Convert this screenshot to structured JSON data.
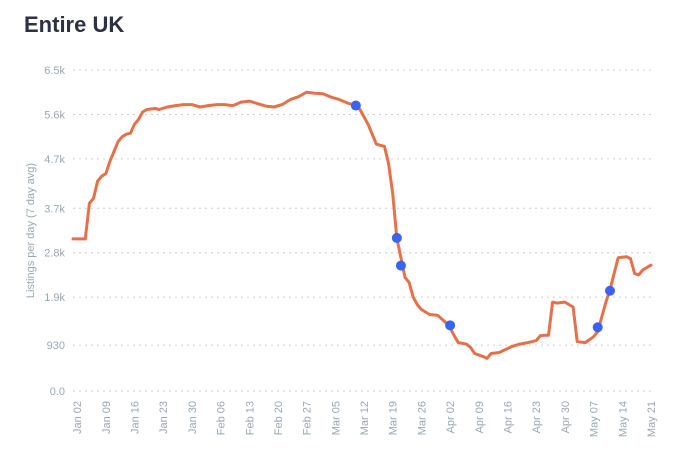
{
  "title": "Entire UK",
  "colors": {
    "line": "#e4714a",
    "marker": "#3a63f2",
    "grid": "#c9ced3",
    "text": "#9aa7b0",
    "title": "#2d3142"
  },
  "chart_data": {
    "type": "line",
    "title": "Entire UK",
    "xlabel": "",
    "ylabel": "Listings per day (7 day avg)",
    "ylim": [
      0,
      6500
    ],
    "yticks": [
      0,
      930,
      1900,
      2800,
      3700,
      4700,
      5600,
      6500
    ],
    "ytick_labels": [
      "0.0",
      "930",
      "1.9k",
      "2.8k",
      "3.7k",
      "4.7k",
      "5.6k",
      "6.5k"
    ],
    "xlim": [
      "2020-01-01",
      "2020-05-21"
    ],
    "xticks": [
      "2020-01-02",
      "2020-01-09",
      "2020-01-16",
      "2020-01-23",
      "2020-01-30",
      "2020-02-06",
      "2020-02-13",
      "2020-02-20",
      "2020-02-27",
      "2020-03-05",
      "2020-03-12",
      "2020-03-19",
      "2020-03-26",
      "2020-04-02",
      "2020-04-09",
      "2020-04-16",
      "2020-04-23",
      "2020-04-30",
      "2020-05-07",
      "2020-05-14",
      "2020-05-21"
    ],
    "xtick_labels": [
      "Jan 02",
      "Jan 09",
      "Jan 16",
      "Jan 23",
      "Jan 30",
      "Feb 06",
      "Feb 13",
      "Feb 20",
      "Feb 27",
      "Mar 05",
      "Mar 12",
      "Mar 19",
      "Mar 26",
      "Apr 02",
      "Apr 09",
      "Apr 16",
      "Apr 23",
      "Apr 30",
      "May 07",
      "May 14",
      "May 21"
    ],
    "grid": true,
    "series": [
      {
        "x": [
          "2020-01-01",
          "2020-01-02",
          "2020-01-04",
          "2020-01-05",
          "2020-01-06",
          "2020-01-07",
          "2020-01-08",
          "2020-01-09",
          "2020-01-10",
          "2020-01-11",
          "2020-01-12",
          "2020-01-13",
          "2020-01-14",
          "2020-01-15",
          "2020-01-16",
          "2020-01-17",
          "2020-01-18",
          "2020-01-19",
          "2020-01-21",
          "2020-01-22",
          "2020-01-24",
          "2020-01-26",
          "2020-01-28",
          "2020-01-30",
          "2020-02-01",
          "2020-02-03",
          "2020-02-05",
          "2020-02-07",
          "2020-02-09",
          "2020-02-11",
          "2020-02-13",
          "2020-02-15",
          "2020-02-17",
          "2020-02-19",
          "2020-02-21",
          "2020-02-23",
          "2020-02-25",
          "2020-02-27",
          "2020-02-29",
          "2020-03-02",
          "2020-03-04",
          "2020-03-06",
          "2020-03-08",
          "2020-03-10",
          "2020-03-11",
          "2020-03-12",
          "2020-03-13",
          "2020-03-15",
          "2020-03-17",
          "2020-03-18",
          "2020-03-19",
          "2020-03-20",
          "2020-03-21",
          "2020-03-22",
          "2020-03-23",
          "2020-03-24",
          "2020-03-25",
          "2020-03-26",
          "2020-03-28",
          "2020-03-30",
          "2020-04-01",
          "2020-04-02",
          "2020-04-03",
          "2020-04-04",
          "2020-04-06",
          "2020-04-07",
          "2020-04-08",
          "2020-04-10",
          "2020-04-11",
          "2020-04-12",
          "2020-04-14",
          "2020-04-15",
          "2020-04-17",
          "2020-04-19",
          "2020-04-21",
          "2020-04-23",
          "2020-04-24",
          "2020-04-25",
          "2020-04-26",
          "2020-04-27",
          "2020-04-28",
          "2020-04-30",
          "2020-05-01",
          "2020-05-02",
          "2020-05-03",
          "2020-05-05",
          "2020-05-07",
          "2020-05-08",
          "2020-05-09",
          "2020-05-10",
          "2020-05-11",
          "2020-05-12",
          "2020-05-13",
          "2020-05-15",
          "2020-05-16",
          "2020-05-17",
          "2020-05-18",
          "2020-05-19",
          "2020-05-21"
        ],
        "values": [
          3080,
          3080,
          3080,
          3800,
          3900,
          4250,
          4350,
          4400,
          4650,
          4850,
          5050,
          5150,
          5200,
          5220,
          5400,
          5500,
          5650,
          5700,
          5720,
          5700,
          5750,
          5780,
          5800,
          5800,
          5750,
          5780,
          5800,
          5800,
          5780,
          5850,
          5870,
          5820,
          5770,
          5750,
          5800,
          5900,
          5960,
          6050,
          6030,
          6020,
          5950,
          5900,
          5830,
          5780,
          5700,
          5550,
          5400,
          5000,
          4950,
          4600,
          4000,
          3100,
          2700,
          2300,
          2200,
          1900,
          1750,
          1650,
          1550,
          1530,
          1380,
          1280,
          1120,
          980,
          950,
          880,
          760,
          700,
          660,
          760,
          780,
          820,
          900,
          950,
          980,
          1020,
          1120,
          1130,
          1130,
          1800,
          1780,
          1800,
          1750,
          1700,
          1000,
          980,
          1100,
          1200,
          1500,
          1800,
          2050,
          2380,
          2700,
          2720,
          2680,
          2380,
          2350,
          2450,
          2550
        ]
      }
    ],
    "markers": [
      {
        "x": "2020-03-10",
        "y": 5780
      },
      {
        "x": "2020-03-20",
        "y": 3100
      },
      {
        "x": "2020-03-21",
        "y": 2540
      },
      {
        "x": "2020-04-02",
        "y": 1330
      },
      {
        "x": "2020-05-08",
        "y": 1290
      },
      {
        "x": "2020-05-11",
        "y": 2030
      }
    ]
  }
}
